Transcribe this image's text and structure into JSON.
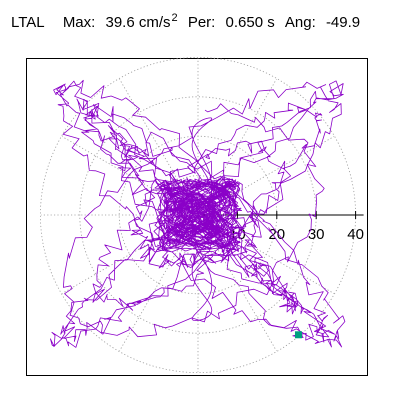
{
  "header": {
    "station": "LTAL",
    "max_label": "Max:",
    "max_value": "39.6 cm/s",
    "max_exp": "2",
    "per_label": "Per:",
    "per_value": "0.650 s",
    "ang_label": "Ang:",
    "ang_value": "-49.9"
  },
  "chart_data": {
    "type": "scatter",
    "subtype": "polar-particle-motion",
    "title": "LTAL   Max: 39.6 cm/s2   Per: 0.650 s   Ang: -49.9",
    "radial_ticks": [
      "10",
      "20",
      "30",
      "40"
    ],
    "radial_tick_values": [
      10,
      20,
      30,
      40
    ],
    "radial_max": 40,
    "grid": "dotted concentric circles and radial lines every 30 degrees",
    "trace_color": "#8a00c8",
    "marker_color": "#00a080",
    "max_point": {
      "x": 25.5,
      "y": -30.4
    },
    "max_amplitude": 39.6
  }
}
